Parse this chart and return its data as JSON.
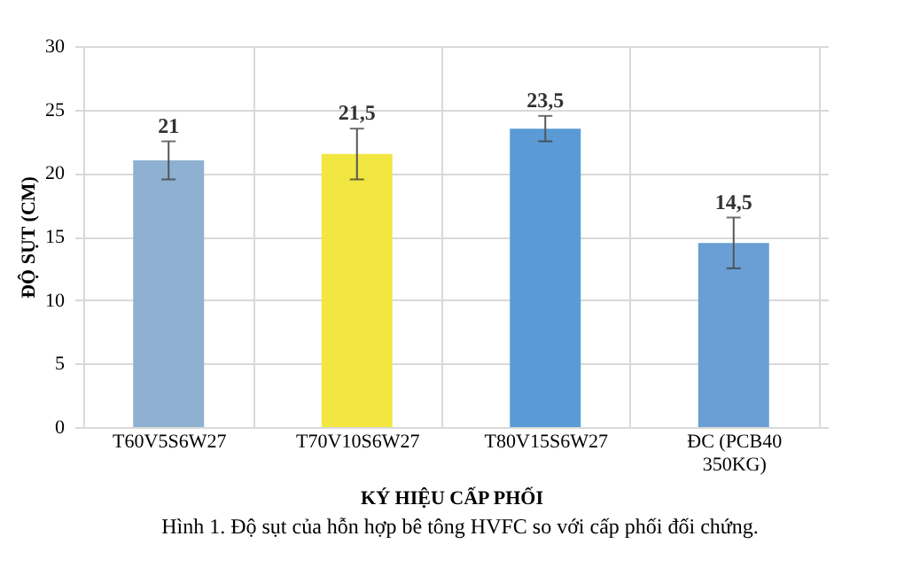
{
  "chart_data": {
    "type": "bar",
    "xlabel": "KÝ HIỆU CẤP PHỐI",
    "ylabel": "ĐỘ SỤT (CM)",
    "categories": [
      "T60V5S6W27",
      "T70V10S6W27",
      "T80V15S6W27",
      "ĐC (PCB40 350KG)"
    ],
    "values": [
      21,
      21.5,
      23.5,
      14.5
    ],
    "colors": [
      "#8eb1d1",
      "#f2e640",
      "#5b9bd5",
      "#6a9fd6"
    ],
    "errors": [
      1.5,
      2,
      1,
      2
    ],
    "value_labels": [
      "21",
      "21,5",
      "23,5",
      "14,5"
    ],
    "ylim": [
      0,
      30
    ],
    "yticks": [
      0,
      5,
      10,
      15,
      20,
      25,
      30
    ],
    "grid": true,
    "annotations": [
      "Hình 1. Độ sụt của hỗn hợp bê tông HVFC so với cấp phối đối chứng."
    ]
  }
}
